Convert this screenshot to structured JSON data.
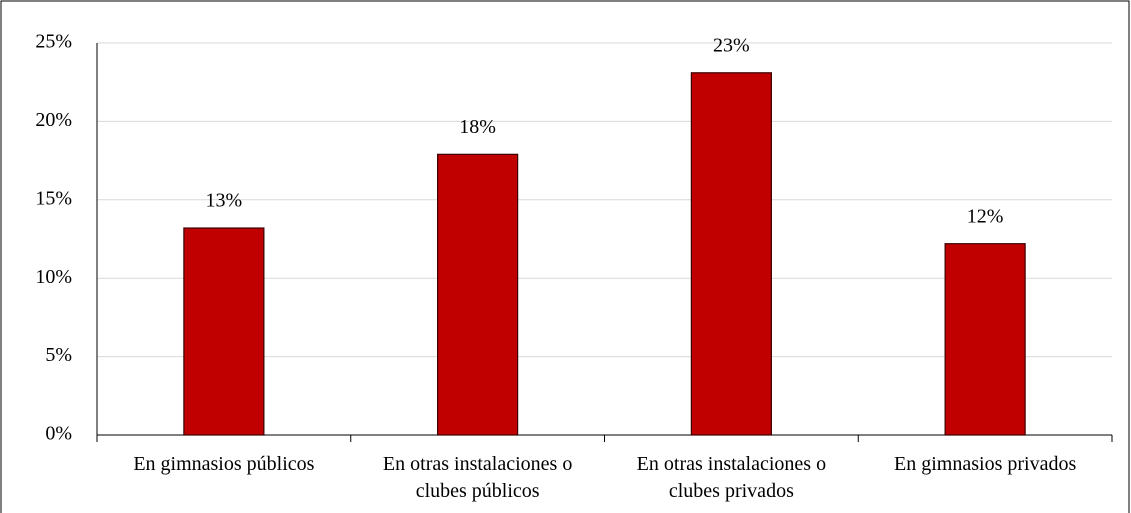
{
  "chart_data": {
    "type": "bar",
    "categories": [
      "En gimnasios públicos",
      "En otras instalaciones o clubes públicos",
      "En otras instalaciones o clubes privados",
      "En gimnasios privados"
    ],
    "values": [
      13.2,
      17.9,
      23.1,
      12.2
    ],
    "value_labels": [
      "13%",
      "18%",
      "23%",
      "12%"
    ],
    "color": "#c00000",
    "ylim": [
      0,
      25
    ],
    "yticks": [
      {
        "value": 0,
        "label": "0%"
      },
      {
        "value": 5,
        "label": "5%"
      },
      {
        "value": 10,
        "label": "10%"
      },
      {
        "value": 15,
        "label": "15%"
      },
      {
        "value": 20,
        "label": "20%"
      },
      {
        "value": 25,
        "label": "25%"
      }
    ],
    "grid": true
  }
}
